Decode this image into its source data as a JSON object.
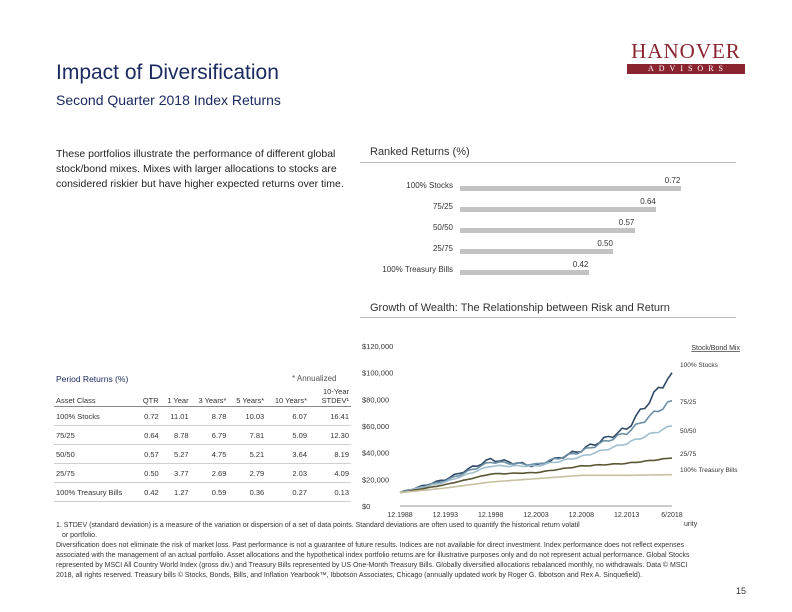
{
  "logo": {
    "name": "HANOVER",
    "tagline": "ADVISORS"
  },
  "header": {
    "title": "Impact of Diversification",
    "subtitle": "Second Quarter 2018 Index Returns"
  },
  "intro": "These portfolios illustrate the performance of different global stock/bond mixes. Mixes with larger allocations to stocks are considered riskier but have higher expected returns over time.",
  "ranked": {
    "title": "Ranked Returns (%)",
    "items": [
      {
        "label": "100% Stocks",
        "value": "0.72"
      },
      {
        "label": "75/25",
        "value": "0.64"
      },
      {
        "label": "50/50",
        "value": "0.57"
      },
      {
        "label": "25/75",
        "value": "0.50"
      },
      {
        "label": "100% Treasury Bills",
        "value": "0.42"
      }
    ]
  },
  "period": {
    "title": "Period Returns (%)",
    "annualized_note": "* Annualized",
    "columns": [
      "Asset Class",
      "QTR",
      "1 Year",
      "3 Years*",
      "5 Years*",
      "10 Years*",
      "10-Year STDEV¹"
    ],
    "rows": [
      [
        "100% Stocks",
        "0.72",
        "11.01",
        "8.78",
        "10.03",
        "6.07",
        "16.41"
      ],
      [
        "75/25",
        "0.64",
        "8.78",
        "6.79",
        "7.81",
        "5.09",
        "12.30"
      ],
      [
        "50/50",
        "0.57",
        "5.27",
        "4.75",
        "5.21",
        "3.64",
        "8.19"
      ],
      [
        "25/75",
        "0.50",
        "3.77",
        "2.69",
        "2.79",
        "2.03",
        "4.09"
      ],
      [
        "100% Treasury Bills",
        "0.42",
        "1.27",
        "0.59",
        "0.36",
        "0.27",
        "0.13"
      ]
    ]
  },
  "growth": {
    "title": "Growth of Wealth: The Relationship between Risk and Return",
    "legend_title": "Stock/Bond Mix",
    "y_ticks": [
      "$120,000",
      "$100,000",
      "$80,000",
      "$60,000",
      "$40,000",
      "$20,000",
      "$0"
    ],
    "x_ticks": [
      "12.1988",
      "12.1993",
      "12.1998",
      "12.2003",
      "12.2008",
      "12.2013",
      "6/2018"
    ]
  },
  "footnotes": {
    "note1": "1. STDEV (standard deviation) is a measure of the variation or dispersion of a set of data points. Standard deviations are often used to quantify the historical return volatil",
    "note1_tail": "urity",
    "note1_cont": "or portfolio.",
    "disclaimer": "Diversification does not eliminate the risk of market loss. Past performance is not a guarantee of future results. Indices are not available for direct investment. Index performance does not reflect expenses associated with the management of an actual portfolio. Asset allocations and the hypothetical index portfolio returns are for illustrative purposes only and do not represent actual performance. Global Stocks represented by MSCI All Country World Index (gross div.) and Treasury Bills represented by US One-Month Treasury Bills. Globally diversified allocations rebalanced monthly, no withdrawals. Data © MSCI 2018, all rights reserved. Treasury bills © Stocks, Bonds, Bills, and Inflation Yearbook™, Ibbotson Associates, Chicago (annually updated work by Roger G. Ibbotson and Rex A. Sinquefield)."
  },
  "page_number": "15",
  "chart_data": [
    {
      "type": "bar",
      "title": "Ranked Returns (%)",
      "categories": [
        "100% Stocks",
        "75/25",
        "50/50",
        "25/75",
        "100% Treasury Bills"
      ],
      "values": [
        0.72,
        0.64,
        0.57,
        0.5,
        0.42
      ],
      "xlim": [
        0,
        0.75
      ]
    },
    {
      "type": "line",
      "title": "Growth of Wealth: The Relationship between Risk and Return",
      "xlabel": "",
      "ylabel": "",
      "x": [
        "12.1988",
        "12.1993",
        "12.1998",
        "12.2003",
        "12.2008",
        "12.2013",
        "6/2018"
      ],
      "ylim": [
        0,
        120000
      ],
      "series": [
        {
          "name": "100% Stocks",
          "color": "#2e4a66",
          "values": [
            10000,
            20000,
            35000,
            30000,
            42000,
            58000,
            100000
          ]
        },
        {
          "name": "75/25",
          "color": "#6d8fa6",
          "values": [
            10000,
            19000,
            33000,
            31000,
            41000,
            55000,
            79000
          ]
        },
        {
          "name": "50/50",
          "color": "#9fbfcf",
          "values": [
            10000,
            18000,
            30000,
            30000,
            37000,
            47000,
            60000
          ]
        },
        {
          "name": "25/75",
          "color": "#5a5533",
          "values": [
            10000,
            16000,
            24000,
            25000,
            30000,
            32000,
            36000
          ]
        },
        {
          "name": "100% Treasury Bills",
          "color": "#c7c1a0",
          "values": [
            10000,
            13500,
            18000,
            20500,
            23000,
            23000,
            23500
          ]
        }
      ]
    }
  ]
}
